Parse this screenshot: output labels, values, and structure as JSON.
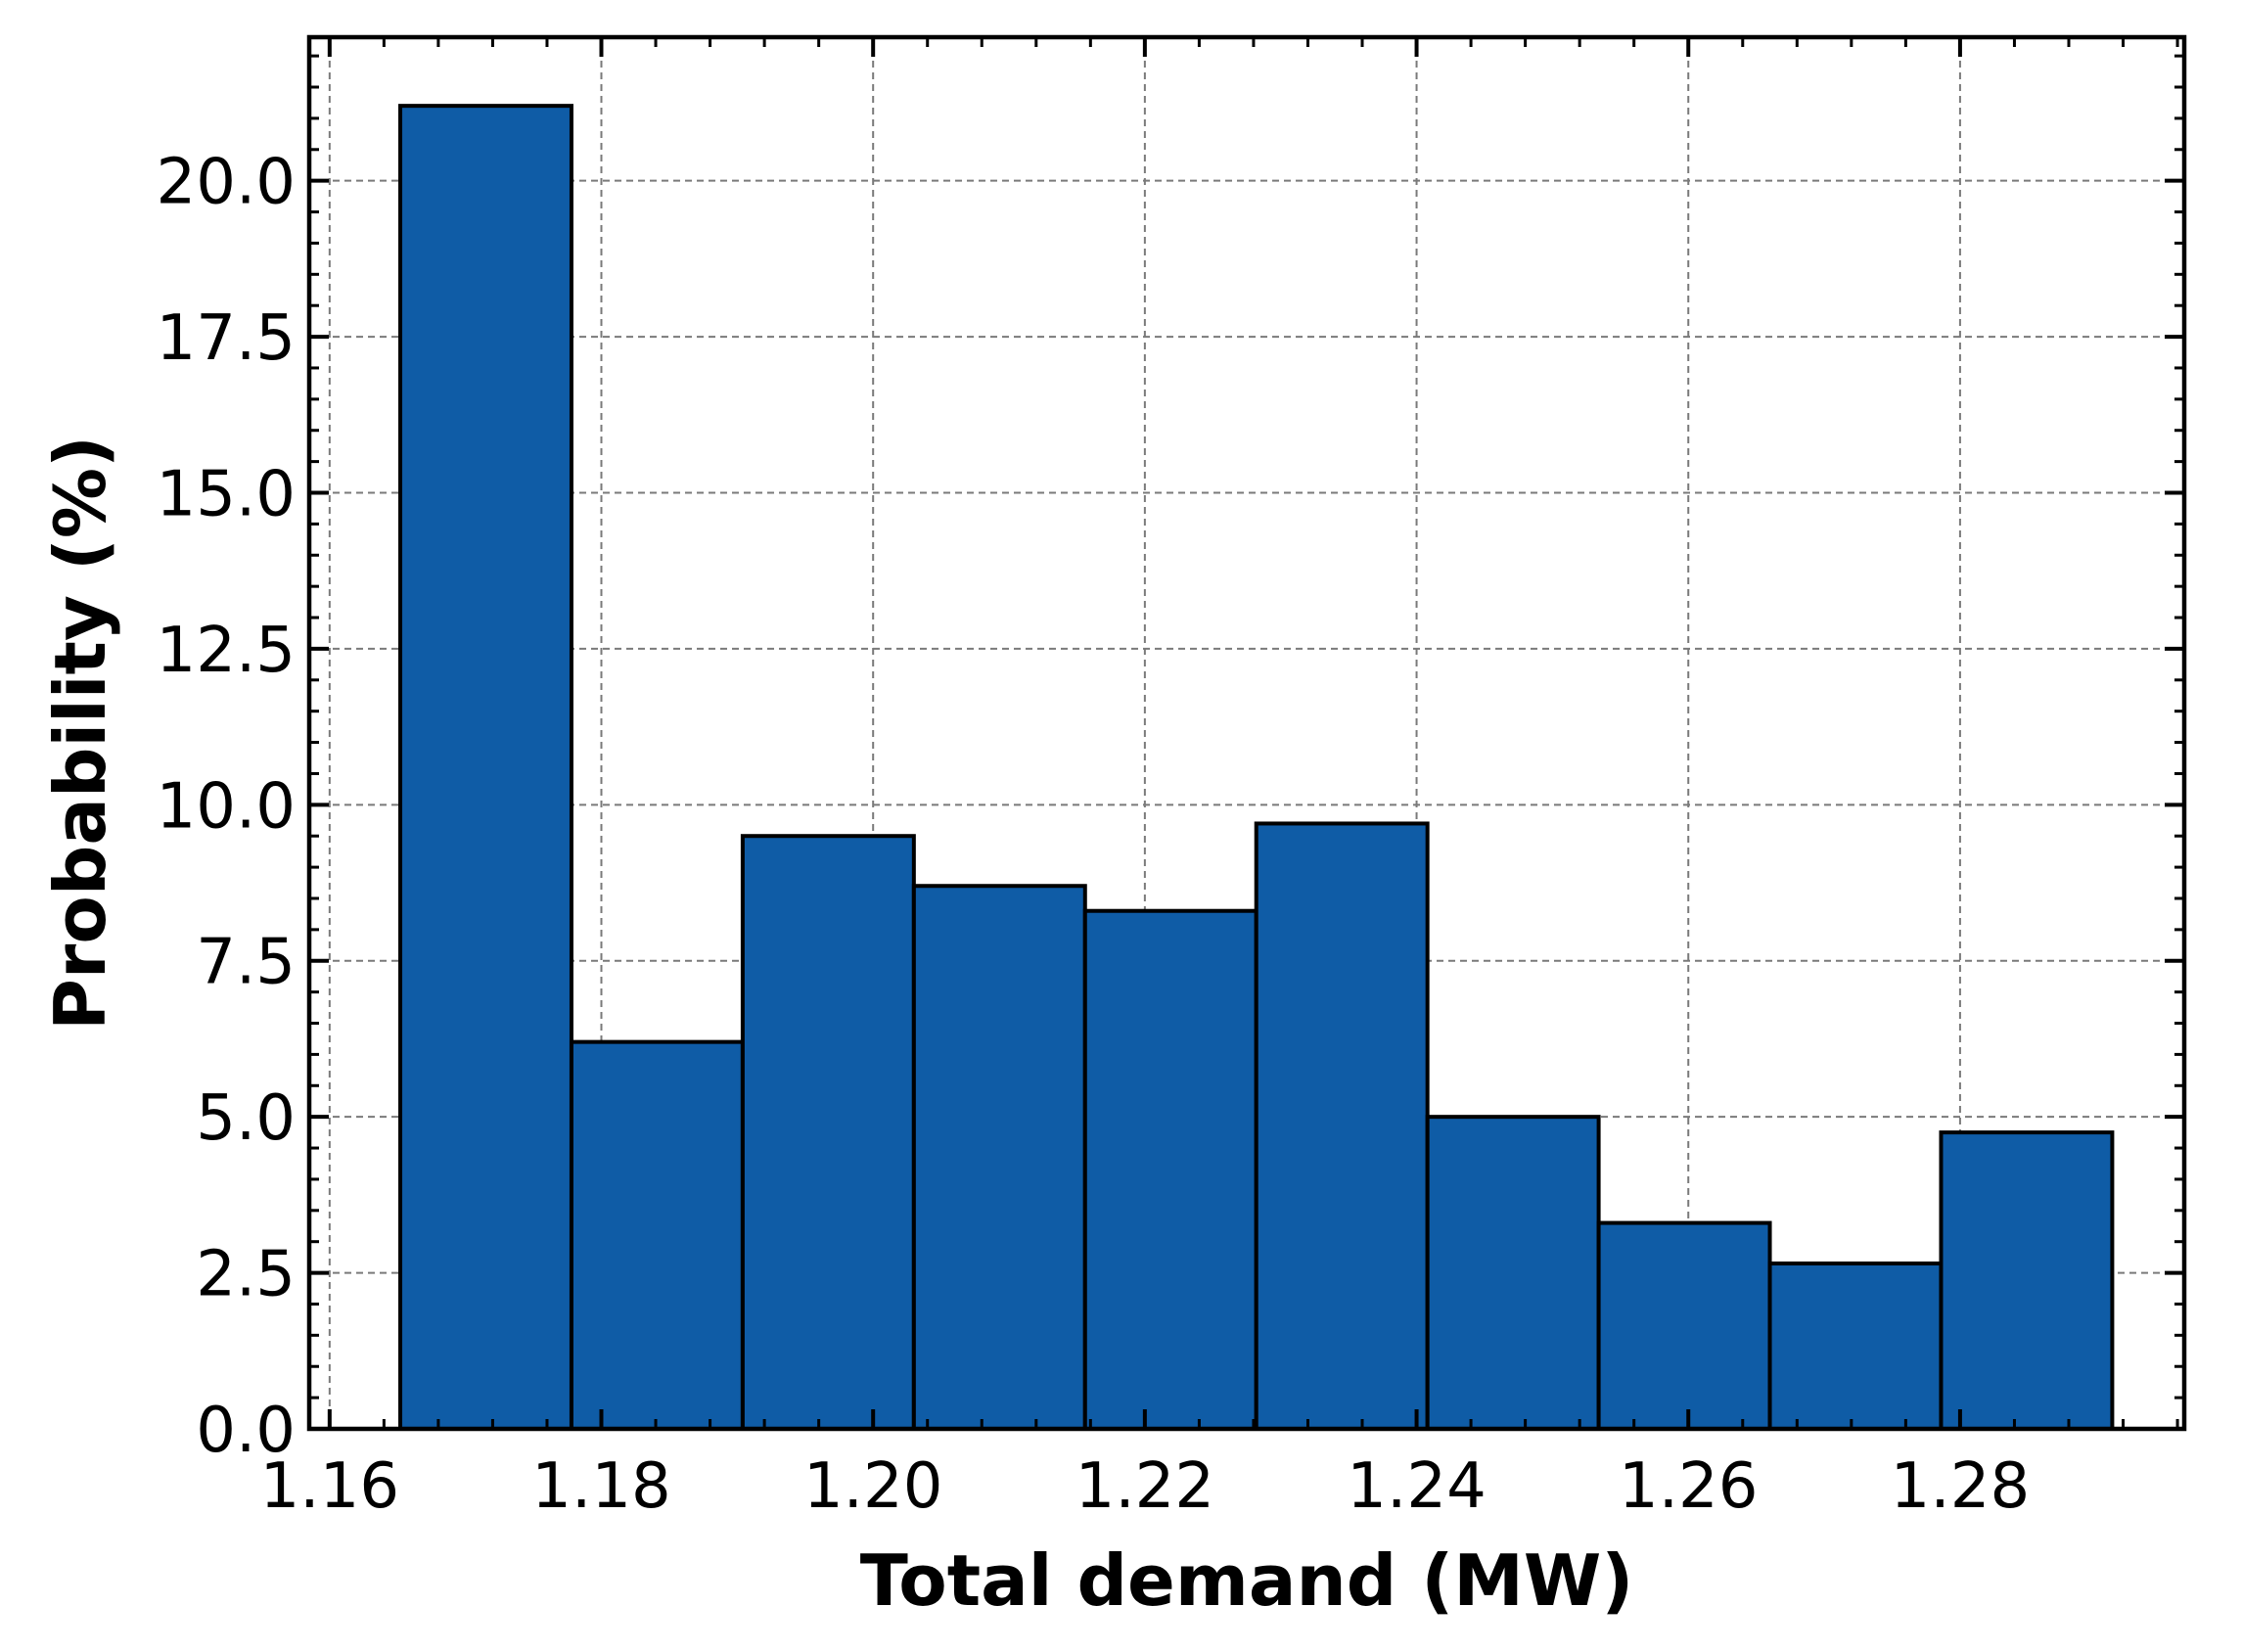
{
  "chart_data": {
    "type": "histogram",
    "xlabel": "Total demand (MW)",
    "ylabel": "Probability (%)",
    "xlim": [
      1.1585,
      1.2965
    ],
    "ylim": [
      0,
      22.3
    ],
    "xticks": [
      1.16,
      1.18,
      1.2,
      1.22,
      1.24,
      1.26,
      1.28
    ],
    "xtick_labels": [
      "1.16",
      "1.18",
      "1.20",
      "1.22",
      "1.24",
      "1.26",
      "1.28"
    ],
    "yticks": [
      0,
      2.5,
      5,
      7.5,
      10,
      12.5,
      15,
      17.5,
      20
    ],
    "ytick_labels": [
      "0.0",
      "2.5",
      "5.0",
      "7.5",
      "10.0",
      "12.5",
      "15.0",
      "17.5",
      "20.0"
    ],
    "bin_edges": [
      1.1652,
      1.1778,
      1.1904,
      1.203,
      1.2156,
      1.2282,
      1.2408,
      1.2534,
      1.266,
      1.2786,
      1.2912
    ],
    "values": [
      21.2,
      6.2,
      9.5,
      8.7,
      8.3,
      9.7,
      5.0,
      3.3,
      2.65,
      4.75
    ],
    "grid": true,
    "bar_color": "#0f5ca6",
    "edge_color": "#000000"
  }
}
